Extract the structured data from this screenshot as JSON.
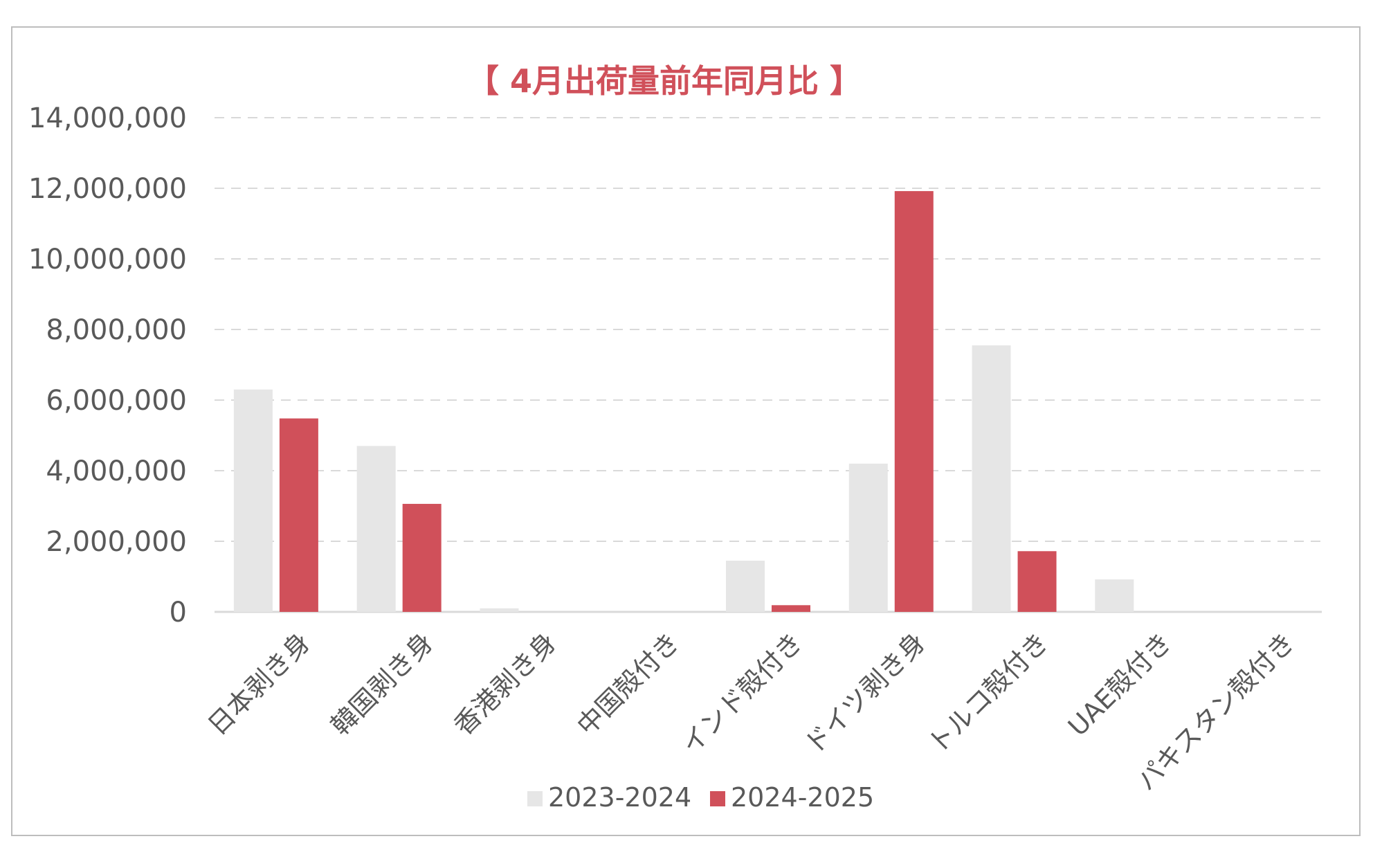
{
  "chart_data": {
    "type": "bar",
    "title": "【 4月出荷量前年同月比 】",
    "categories": [
      "日本剥き身",
      "韓国剥き身",
      "香港剥き身",
      "中国殻付き",
      "インド殻付き",
      "ドイツ剥き身",
      "トルコ殻付き",
      "UAE殻付き",
      "パキスタン殻付き"
    ],
    "series": [
      {
        "name": "2023-2024",
        "color": "#e6e6e6",
        "values": [
          6300000,
          4700000,
          100000,
          0,
          1450000,
          4200000,
          7550000,
          920000,
          0
        ]
      },
      {
        "name": "2024-2025",
        "color": "#d0505a",
        "values": [
          5480000,
          3060000,
          0,
          0,
          190000,
          11920000,
          1720000,
          0,
          0
        ]
      }
    ],
    "yticks": [
      "0",
      "2,000,000",
      "4,000,000",
      "6,000,000",
      "8,000,000",
      "10,000,000",
      "12,000,000",
      "14,000,000"
    ],
    "ylim": [
      0,
      14000000
    ],
    "grid": true,
    "legend_position": "bottom"
  }
}
